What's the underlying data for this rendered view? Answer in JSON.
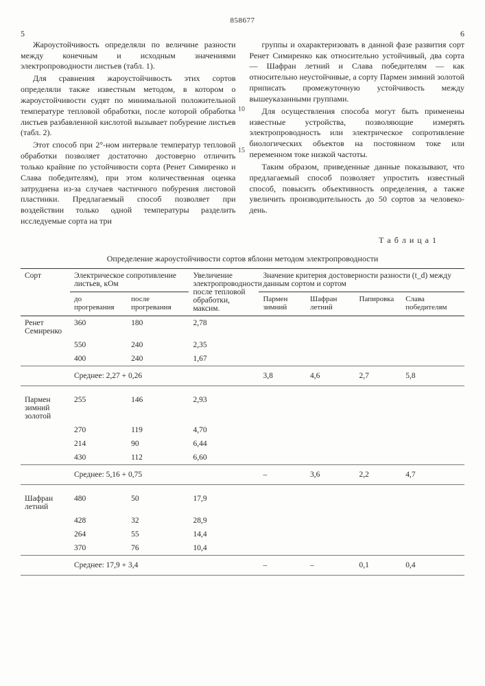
{
  "header": {
    "docnum": "858677",
    "left_col_num": "5",
    "right_col_num": "6"
  },
  "left_paras": [
    "Жароустойчивость определяли по величине разности между конечным и исходным значениями электропроводности листьев (табл. 1).",
    "Для сравнения жароустойчивость этих сортов определяли также известным методом, в котором о жароустойчивости судят по минимальной положительной температуре тепловой обработки, после которой обработка листьев разбавленной кислотой вызывает побурение листьев (табл. 2).",
    "Этот способ при 2°-ном интервале температур тепловой обработки позволяет достаточно достоверно отличить только крайние по устойчивости сорта (Ренет Симиренко и Слава победителям), при этом количественная оценка затруднена из-за случаев частичного побурения листовой пластинки. Предлагаемый способ позволяет при воздействии только одной температуры разделить исследуемые сорта на три"
  ],
  "right_paras": [
    "группы и охарактеризовать в данной фазе развития сорт Ренет Симиренко как относительно устойчивый, два сорта — Шафран летний и Слава победителям — как относительно неустойчивые, а сорту Пармен зимний золотой приписать промежуточную устойчивость между вышеуказанными группами.",
    "Для осуществления способа могут быть применены известные устройства, позволяющие измерять электропроводность или электрическое сопротивление биологических объектов на постоянном токе или переменном токе низкой частоты.",
    "Таким образом, приведенные данные показывают, что предлагаемый способ позволяет упростить известный способ, повысить объективность определения, а также увеличить производительность до 50 сортов за человеко-день."
  ],
  "sidenums": {
    "n10": "10",
    "n15": "15"
  },
  "table": {
    "label": "Т а б л и ц а 1",
    "title": "Определение жароустойчивости сортов яблони методом электропроводности",
    "headers": {
      "sort": "Сорт",
      "res": "Электрическое сопротивление листьев, кОм",
      "res_before": "до прогревания",
      "res_after": "после прогревания",
      "inc": "Увеличение электропроводности после тепловой обработки, максим.",
      "crit": "Значение критерия достоверности разности (t_d) между данным сортом и сортом",
      "c1": "Пармен зимний",
      "c2": "Шафран летний",
      "c3": "Папировка",
      "c4": "Слава победителям"
    },
    "groups": [
      {
        "name": "Ренет Семиренко",
        "rows": [
          {
            "b": "360",
            "a": "180",
            "i": "2,78"
          },
          {
            "b": "550",
            "a": "240",
            "i": "2,35"
          },
          {
            "b": "400",
            "a": "240",
            "i": "1,67"
          }
        ],
        "avg_label": "Среднее:",
        "avg": "2,27 + 0,26",
        "crit": [
          "3,8",
          "4,6",
          "2,7",
          "5,8"
        ]
      },
      {
        "name": "Пармен зимний золотой",
        "rows": [
          {
            "b": "255",
            "a": "146",
            "i": "2,93"
          },
          {
            "b": "270",
            "a": "119",
            "i": "4,70"
          },
          {
            "b": "214",
            "a": "90",
            "i": "6,44"
          },
          {
            "b": "430",
            "a": "112",
            "i": "6,60"
          }
        ],
        "avg_label": "Среднее:",
        "avg": "5,16 + 0,75",
        "crit": [
          "–",
          "3,6",
          "2,2",
          "4,7"
        ]
      },
      {
        "name": "Шафран летний",
        "rows": [
          {
            "b": "480",
            "a": "50",
            "i": "17,9"
          },
          {
            "b": "428",
            "a": "32",
            "i": "28,9"
          },
          {
            "b": "264",
            "a": "55",
            "i": "14,4"
          },
          {
            "b": "370",
            "a": "76",
            "i": "10,4"
          }
        ],
        "avg_label": "Среднее:",
        "avg": "17,9 + 3,4",
        "crit": [
          "–",
          "–",
          "0,1",
          "0,4"
        ]
      }
    ]
  }
}
